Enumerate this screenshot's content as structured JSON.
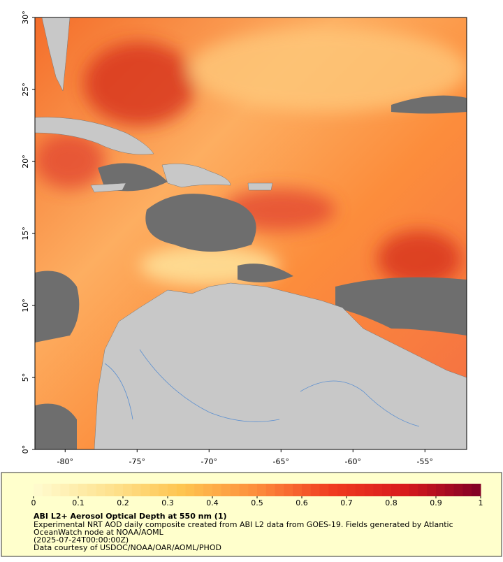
{
  "map": {
    "xlim": [
      -82.1,
      -52.1
    ],
    "ylim": [
      0,
      30
    ],
    "xticks": [
      {
        "value": -80,
        "label": "-80°"
      },
      {
        "value": -75,
        "label": "-75°"
      },
      {
        "value": -70,
        "label": "-70°"
      },
      {
        "value": -65,
        "label": "-65°"
      },
      {
        "value": -60,
        "label": "-60°"
      },
      {
        "value": -55,
        "label": "-55°"
      }
    ],
    "yticks": [
      {
        "value": 0,
        "label": "0°"
      },
      {
        "value": 5,
        "label": "5°"
      },
      {
        "value": 10,
        "label": "10°"
      },
      {
        "value": 15,
        "label": "15°"
      },
      {
        "value": 20,
        "label": "20°"
      },
      {
        "value": 25,
        "label": "25°"
      },
      {
        "value": 30,
        "label": "30°"
      }
    ]
  },
  "colorbar": {
    "range": [
      0,
      1
    ],
    "ticks": [
      0,
      0.1,
      0.2,
      0.3,
      0.4,
      0.5,
      0.6,
      0.7,
      0.8,
      0.9,
      1
    ],
    "colors": [
      "#fffbd0",
      "#fee391",
      "#fec44f",
      "#fd8d3c",
      "#f03b20",
      "#d7191c",
      "#800026"
    ]
  },
  "caption": {
    "title": "ABI L2+ Aerosol Optical Depth at 550 nm (1)",
    "lines": [
      "Experimental NRT AOD daily composite created from ABI L2 data from GOES-19. Fields generated by Atlantic",
      "OceanWatch node at NOAA/AOML",
      "(2025-07-24T00:00:00Z)",
      "Data courtesy of USDOC/NOAA/OAR/AOML/PHOD"
    ]
  }
}
